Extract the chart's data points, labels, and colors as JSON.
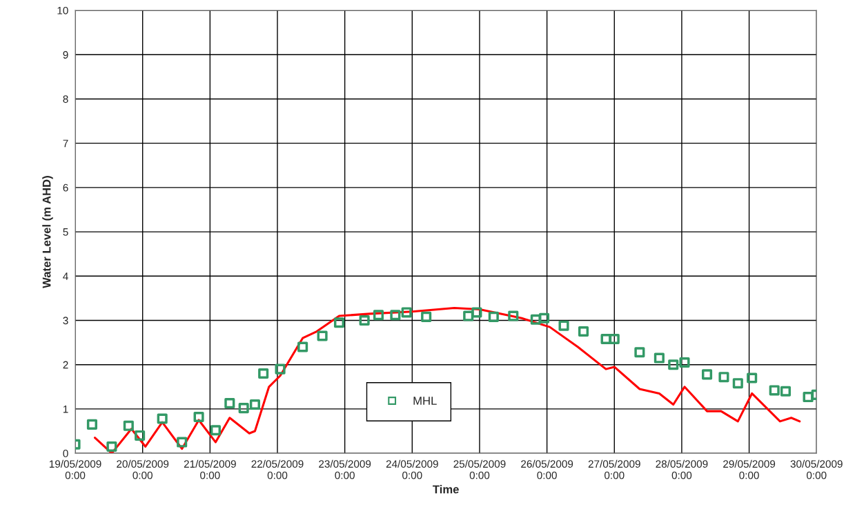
{
  "chart_data": {
    "type": "line",
    "xlabel": "Time",
    "ylabel": "Water Level (m AHD)",
    "xlim": [
      "2009-05-19",
      "2009-05-30"
    ],
    "xticks": [
      {
        "value": "2009-05-19",
        "label": "19/05/2009\n0:00"
      },
      {
        "value": "2009-05-20",
        "label": "20/05/2009\n0:00"
      },
      {
        "value": "2009-05-21",
        "label": "21/05/2009\n0:00"
      },
      {
        "value": "2009-05-22",
        "label": "22/05/2009\n0:00"
      },
      {
        "value": "2009-05-23",
        "label": "23/05/2009\n0:00"
      },
      {
        "value": "2009-05-24",
        "label": "24/05/2009\n0:00"
      },
      {
        "value": "2009-05-25",
        "label": "25/05/2009\n0:00"
      },
      {
        "value": "2009-05-26",
        "label": "26/05/2009\n0:00"
      },
      {
        "value": "2009-05-27",
        "label": "27/05/2009\n0:00"
      },
      {
        "value": "2009-05-28",
        "label": "28/05/2009\n0:00"
      },
      {
        "value": "2009-05-29",
        "label": "29/05/2009\n0:00"
      },
      {
        "value": "2009-05-30",
        "label": "30/05/2009\n0:00"
      }
    ],
    "ylim": [
      0,
      10
    ],
    "yticks": [
      0,
      1,
      2,
      3,
      4,
      5,
      6,
      7,
      8,
      9,
      10
    ],
    "grid": true,
    "legend": "bottom",
    "series": [
      {
        "name": "MHL",
        "type": "scatter",
        "marker": "square",
        "color": "#339966",
        "x": [
          "2009-05-19T00:00",
          "2009-05-19T06:00",
          "2009-05-19T13:00",
          "2009-05-19T19:00",
          "2009-05-19T23:00",
          "2009-05-20T07:00",
          "2009-05-20T14:00",
          "2009-05-20T20:00",
          "2009-05-21T02:00",
          "2009-05-21T07:00",
          "2009-05-21T12:00",
          "2009-05-21T16:00",
          "2009-05-21T19:00",
          "2009-05-22T01:00",
          "2009-05-22T09:00",
          "2009-05-22T16:00",
          "2009-05-22T22:00",
          "2009-05-23T07:00",
          "2009-05-23T12:00",
          "2009-05-23T18:00",
          "2009-05-23T22:00",
          "2009-05-24T05:00",
          "2009-05-24T20:00",
          "2009-05-24T23:00",
          "2009-05-25T05:00",
          "2009-05-25T12:00",
          "2009-05-25T20:00",
          "2009-05-25T23:00",
          "2009-05-26T06:00",
          "2009-05-26T13:00",
          "2009-05-26T21:00",
          "2009-05-27T00:00",
          "2009-05-27T09:00",
          "2009-05-27T16:00",
          "2009-05-27T21:00",
          "2009-05-28T01:00",
          "2009-05-28T09:00",
          "2009-05-28T15:00",
          "2009-05-28T20:00",
          "2009-05-29T01:00",
          "2009-05-29T09:00",
          "2009-05-29T13:00",
          "2009-05-29T21:00",
          "2009-05-30T00:00"
        ],
        "values": [
          0.2,
          0.65,
          0.15,
          0.62,
          0.4,
          0.78,
          0.25,
          0.82,
          0.52,
          1.13,
          1.02,
          1.1,
          1.8,
          1.9,
          2.4,
          2.65,
          2.95,
          3.0,
          3.12,
          3.12,
          3.18,
          3.08,
          3.1,
          3.18,
          3.08,
          3.1,
          3.02,
          3.05,
          2.88,
          2.75,
          2.58,
          2.58,
          2.28,
          2.15,
          2.0,
          2.05,
          1.78,
          1.72,
          1.58,
          1.7,
          1.42,
          1.4,
          1.27,
          1.32
        ]
      },
      {
        "line_style": "solid",
        "color": "#ff0000",
        "x": [
          "2009-05-19T07:00",
          "2009-05-19T13:00",
          "2009-05-19T20:00",
          "2009-05-20T01:00",
          "2009-05-20T07:00",
          "2009-05-20T14:00",
          "2009-05-20T20:00",
          "2009-05-21T02:00",
          "2009-05-21T07:00",
          "2009-05-21T14:00",
          "2009-05-21T16:00",
          "2009-05-21T21:00",
          "2009-05-22T01:00",
          "2009-05-22T09:00",
          "2009-05-22T14:00",
          "2009-05-22T22:00",
          "2009-05-23T09:00",
          "2009-05-24T00:00",
          "2009-05-24T15:00",
          "2009-05-25T00:00",
          "2009-05-25T15:00",
          "2009-05-26T01:00",
          "2009-05-26T11:00",
          "2009-05-26T21:00",
          "2009-05-27T00:00",
          "2009-05-27T09:00",
          "2009-05-27T16:00",
          "2009-05-27T21:00",
          "2009-05-28T01:00",
          "2009-05-28T09:00",
          "2009-05-28T14:00",
          "2009-05-28T20:00",
          "2009-05-29T01:00",
          "2009-05-29T11:00",
          "2009-05-29T15:00",
          "2009-05-29T18:00"
        ],
        "values": [
          0.35,
          0.0,
          0.55,
          0.15,
          0.7,
          0.1,
          0.75,
          0.25,
          0.8,
          0.45,
          0.5,
          1.5,
          1.75,
          2.6,
          2.75,
          3.1,
          3.15,
          3.2,
          3.28,
          3.25,
          3.05,
          2.85,
          2.4,
          1.9,
          1.95,
          1.45,
          1.35,
          1.1,
          1.5,
          0.95,
          0.95,
          0.72,
          1.35,
          0.72,
          0.8,
          0.72
        ]
      }
    ]
  }
}
